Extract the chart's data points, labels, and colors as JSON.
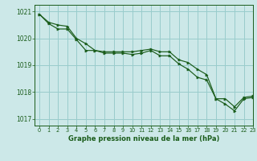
{
  "title": "Graphe pression niveau de la mer (hPa)",
  "bg_color": "#cce8e8",
  "grid_color": "#99cccc",
  "line_color": "#1a5c1a",
  "marker_color": "#1a5c1a",
  "xlim": [
    -0.5,
    23
  ],
  "ylim": [
    1016.75,
    1021.25
  ],
  "yticks": [
    1017,
    1018,
    1019,
    1020,
    1021
  ],
  "xticks": [
    0,
    1,
    2,
    3,
    4,
    5,
    6,
    7,
    8,
    9,
    10,
    11,
    12,
    13,
    14,
    15,
    16,
    17,
    18,
    19,
    20,
    21,
    22,
    23
  ],
  "series1": [
    1020.9,
    1020.6,
    1020.5,
    1020.45,
    1020.0,
    1019.8,
    1019.55,
    1019.5,
    1019.5,
    1019.5,
    1019.5,
    1019.55,
    1019.6,
    1019.5,
    1019.5,
    1019.2,
    1019.1,
    1018.85,
    1018.65,
    1017.75,
    1017.75,
    1017.45,
    1017.8,
    1017.85
  ],
  "series2": [
    1020.9,
    1020.55,
    1020.35,
    1020.35,
    1019.95,
    1019.55,
    1019.55,
    1019.45,
    1019.45,
    1019.45,
    1019.4,
    1019.45,
    1019.55,
    1019.35,
    1019.35,
    1019.05,
    1018.85,
    1018.55,
    1018.45,
    1017.75,
    1017.55,
    1017.3,
    1017.75,
    1017.8
  ]
}
